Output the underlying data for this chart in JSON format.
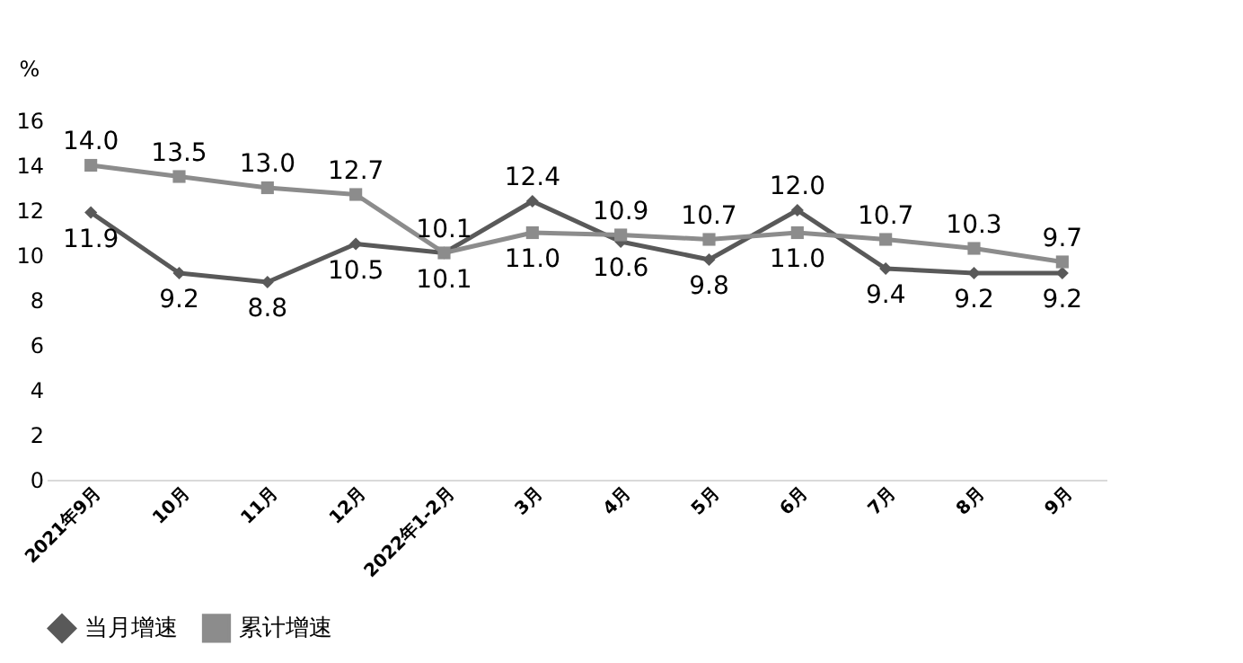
{
  "chart_data": {
    "type": "line",
    "ylabel": "%",
    "categories": [
      "2021年9月",
      "10月",
      "11月",
      "12月",
      "2022年1-2月",
      "3月",
      "4月",
      "5月",
      "6月",
      "7月",
      "8月",
      "9月"
    ],
    "series": [
      {
        "name": "当月增速",
        "color": "#595959",
        "marker": "diamond",
        "values": [
          11.9,
          9.2,
          8.8,
          10.5,
          10.1,
          12.4,
          10.6,
          9.8,
          12.0,
          9.4,
          9.2,
          9.2
        ],
        "value_labels": [
          "11.9",
          "9.2",
          "8.8",
          "10.5",
          "10.1",
          "12.4",
          "10.6",
          "9.8",
          "12.0",
          "9.4",
          "9.2",
          "9.2"
        ]
      },
      {
        "name": "累计增速",
        "color": "#8c8c8c",
        "marker": "square",
        "values": [
          14.0,
          13.5,
          13.0,
          12.7,
          10.1,
          11.0,
          10.9,
          10.7,
          11.0,
          10.7,
          10.3,
          9.7
        ],
        "value_labels": [
          "14.0",
          "13.5",
          "13.0",
          "12.7",
          "10.1",
          "11.0",
          "10.9",
          "10.7",
          "11.0",
          "10.7",
          "10.3",
          "9.7"
        ]
      }
    ],
    "ylim": [
      0,
      16
    ],
    "yticks": [
      0,
      2,
      4,
      6,
      8,
      10,
      12,
      14,
      16
    ],
    "grid": false,
    "legend": "bottom",
    "line_style": "solid"
  }
}
